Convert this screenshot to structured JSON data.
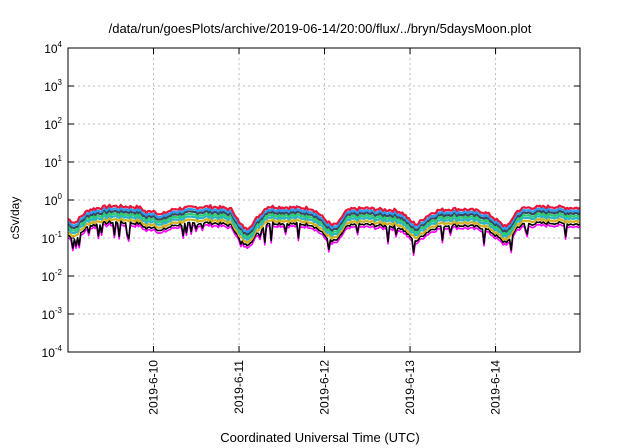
{
  "chart_data": {
    "type": "line",
    "title": "/data/run/goesPlots/archive/2019-06-14/20:00/flux/../bryn/5daysMoon.plot",
    "xlabel": "Coordinated Universal Time (UTC)",
    "ylabel": "cSv/day",
    "x_tick_labels": [
      "2019-6-10",
      "2019-6-11",
      "2019-6-12",
      "2019-6-13",
      "2019-6-14"
    ],
    "y_scale": "log",
    "ylim": [
      0.0001,
      10000
    ],
    "y_tick_labels": [
      {
        "base": "10",
        "exp": "-4",
        "value": 0.0001
      },
      {
        "base": "10",
        "exp": "-3",
        "value": 0.001
      },
      {
        "base": "10",
        "exp": "-2",
        "value": 0.01
      },
      {
        "base": "10",
        "exp": "-1",
        "value": 0.1
      },
      {
        "base": "10",
        "exp": "0",
        "value": 1
      },
      {
        "base": "10",
        "exp": "1",
        "value": 10
      },
      {
        "base": "10",
        "exp": "2",
        "value": 100
      },
      {
        "base": "10",
        "exp": "3",
        "value": 1000
      },
      {
        "base": "10",
        "exp": "4",
        "value": 10000
      }
    ],
    "grid": true,
    "x_days": [
      "2019-06-09",
      "2019-06-10",
      "2019-06-11",
      "2019-06-12",
      "2019-06-13",
      "2019-06-14"
    ],
    "x_range_hours": [
      0,
      143.7
    ],
    "x_tick_hours": [
      24,
      48,
      72,
      96,
      120
    ],
    "series_profile": {
      "hours": [
        0,
        2,
        4,
        6,
        10,
        12,
        16,
        20,
        22,
        24,
        26,
        30,
        36,
        40,
        44,
        46,
        48,
        50,
        52,
        54,
        56,
        60,
        64,
        68,
        70,
        72,
        74,
        76,
        78,
        80,
        84,
        88,
        92,
        94,
        96,
        98,
        100,
        102,
        104,
        108,
        112,
        116,
        118,
        120,
        122,
        124,
        126,
        128,
        132,
        136,
        140,
        143.7
      ],
      "levels": [
        0.28,
        0.22,
        0.35,
        0.5,
        0.58,
        0.62,
        0.6,
        0.58,
        0.42,
        0.48,
        0.36,
        0.52,
        0.58,
        0.6,
        0.55,
        0.5,
        0.22,
        0.15,
        0.22,
        0.38,
        0.6,
        0.58,
        0.56,
        0.55,
        0.42,
        0.28,
        0.19,
        0.22,
        0.45,
        0.52,
        0.54,
        0.5,
        0.48,
        0.4,
        0.25,
        0.2,
        0.3,
        0.4,
        0.48,
        0.52,
        0.5,
        0.45,
        0.38,
        0.28,
        0.19,
        0.2,
        0.45,
        0.55,
        0.58,
        0.6,
        0.56,
        0.55
      ]
    },
    "series": [
      {
        "color": "#e8173a",
        "scale": 1.12
      },
      {
        "color": "#2a9df4",
        "scale": 0.95
      },
      {
        "color": "#35475f",
        "scale": 0.82
      },
      {
        "color": "#2ecc71",
        "scale": 0.7
      },
      {
        "color": "#2ab4c6",
        "scale": 0.6
      },
      {
        "color": "#d4b020",
        "scale": 0.5
      },
      {
        "color": "#000000",
        "scale": 0.42
      },
      {
        "color": "#ff00ff",
        "scale": 0.36
      }
    ]
  }
}
